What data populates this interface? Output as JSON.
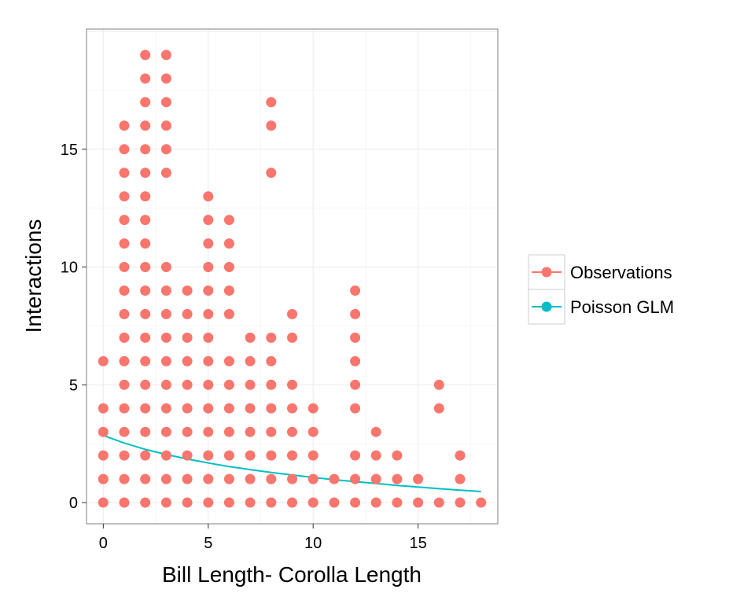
{
  "chart_data": {
    "type": "scatter",
    "xlabel": "Bill Length- Corolla Length",
    "ylabel": "Interactions",
    "xlim": [
      -0.8,
      18.8
    ],
    "ylim": [
      -0.9,
      20.1
    ],
    "x_ticks": [
      0,
      5,
      10,
      15
    ],
    "y_ticks": [
      0,
      5,
      10,
      15
    ],
    "x_tick_labels": [
      "0",
      "5",
      "10",
      "15"
    ],
    "y_tick_labels": [
      "0",
      "5",
      "10",
      "15"
    ],
    "grid": true,
    "legend_position": "right",
    "series": [
      {
        "name": "Observations",
        "kind": "points",
        "color": "#F8766D",
        "columns": [
          {
            "x": 0,
            "y": [
              0,
              1,
              2,
              3,
              4,
              6
            ]
          },
          {
            "x": 1,
            "y": [
              0,
              1,
              2,
              3,
              4,
              5,
              6,
              7,
              8,
              9,
              10,
              11,
              12,
              13,
              14,
              15,
              16
            ]
          },
          {
            "x": 2,
            "y": [
              0,
              1,
              2,
              3,
              4,
              5,
              6,
              7,
              8,
              9,
              10,
              11,
              12,
              13,
              14,
              15,
              16,
              17,
              18,
              19
            ]
          },
          {
            "x": 3,
            "y": [
              0,
              1,
              2,
              3,
              4,
              5,
              6,
              7,
              8,
              9,
              10,
              14,
              15,
              16,
              17,
              18,
              19
            ]
          },
          {
            "x": 4,
            "y": [
              0,
              1,
              2,
              3,
              4,
              5,
              6,
              7,
              8,
              9
            ]
          },
          {
            "x": 5,
            "y": [
              0,
              1,
              2,
              3,
              4,
              5,
              6,
              7,
              8,
              9,
              10,
              11,
              12,
              13
            ]
          },
          {
            "x": 6,
            "y": [
              0,
              1,
              2,
              3,
              4,
              5,
              6,
              8,
              9,
              10,
              11,
              12
            ]
          },
          {
            "x": 7,
            "y": [
              0,
              1,
              2,
              3,
              4,
              5,
              6,
              7
            ]
          },
          {
            "x": 8,
            "y": [
              0,
              1,
              2,
              3,
              4,
              5,
              6,
              7,
              14,
              16,
              17
            ]
          },
          {
            "x": 9,
            "y": [
              0,
              1,
              2,
              3,
              4,
              5,
              7,
              8
            ]
          },
          {
            "x": 10,
            "y": [
              0,
              1,
              2,
              3,
              4
            ]
          },
          {
            "x": 11,
            "y": [
              0,
              1
            ]
          },
          {
            "x": 12,
            "y": [
              0,
              1,
              2,
              4,
              5,
              6,
              7,
              8,
              9
            ]
          },
          {
            "x": 13,
            "y": [
              0,
              1,
              2,
              3
            ]
          },
          {
            "x": 14,
            "y": [
              0,
              1,
              2
            ]
          },
          {
            "x": 15,
            "y": [
              0,
              1
            ]
          },
          {
            "x": 16,
            "y": [
              0,
              4,
              5
            ]
          },
          {
            "x": 17,
            "y": [
              0,
              1,
              2
            ]
          },
          {
            "x": 18,
            "y": [
              0
            ]
          }
        ]
      },
      {
        "name": "Poisson GLM",
        "kind": "line",
        "color": "#00BFC4",
        "x": [
          0,
          1,
          2,
          3,
          4,
          5,
          6,
          7,
          8,
          9,
          10,
          11,
          12,
          13,
          14,
          15,
          16,
          17,
          18
        ],
        "y": [
          2.85,
          2.53,
          2.26,
          2.04,
          1.85,
          1.68,
          1.53,
          1.4,
          1.28,
          1.17,
          1.07,
          0.97,
          0.89,
          0.81,
          0.73,
          0.66,
          0.59,
          0.53,
          0.47
        ]
      }
    ]
  }
}
